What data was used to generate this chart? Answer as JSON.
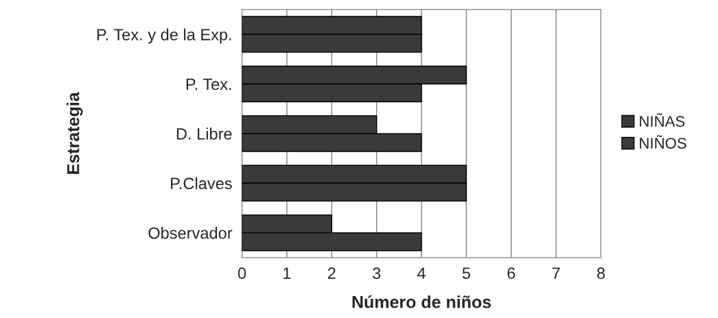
{
  "chart_data": {
    "type": "bar",
    "orientation": "horizontal",
    "xlabel": "Número de niños",
    "ylabel": "Estrategia",
    "categories": [
      "P. Tex. y de la Exp.",
      "P. Tex.",
      "D. Libre",
      "P.Claves",
      "Observador"
    ],
    "series": [
      {
        "name": "NIÑAS",
        "color": "#3a3a3a",
        "values": [
          4,
          5,
          3,
          5,
          2
        ]
      },
      {
        "name": "NIÑOS",
        "color": "#3a3a3a",
        "values": [
          4,
          4,
          4,
          5,
          4
        ]
      }
    ],
    "xlim": [
      0,
      8
    ],
    "xticks": [
      0,
      1,
      2,
      3,
      4,
      5,
      6,
      7,
      8
    ],
    "grid": "x",
    "legend": "right"
  }
}
